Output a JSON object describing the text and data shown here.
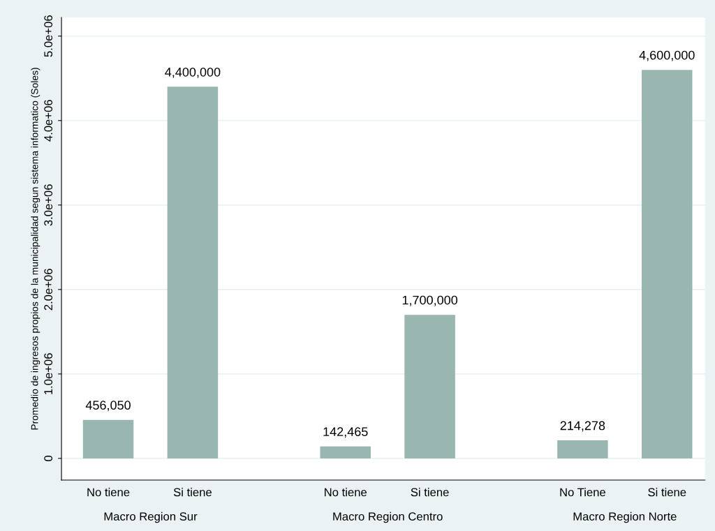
{
  "chart_data": {
    "type": "bar",
    "ylabel": "Promedio de ingresos propios de la municipalidad segun sistema informatico (Soles)",
    "categories": [
      "No tiene",
      "Si tiene",
      "No tiene",
      "Si tiene",
      "No Tiene",
      "Si tiene"
    ],
    "values": [
      456050,
      4400000,
      142465,
      1700000,
      214278,
      4600000
    ],
    "value_labels": [
      "456,050",
      "4,400,000",
      "142,465",
      "1,700,000",
      "214,278",
      "4,600,000"
    ],
    "color": "#99b7b0",
    "ylim": [
      -256000,
      5220000
    ],
    "yticks": [
      {
        "value": 0,
        "label": "0"
      },
      {
        "value": 1000000,
        "label": "1.0e+06"
      },
      {
        "value": 2000000,
        "label": "2.0e+06"
      },
      {
        "value": 3000000,
        "label": "3.0e+06"
      },
      {
        "value": 4000000,
        "label": "4.0e+06"
      },
      {
        "value": 5000000,
        "label": "5.0e+06"
      }
    ],
    "grid": "y",
    "annotations": [
      "Macro Region Sur",
      "Macro Region Centro",
      "Macro Region Norte"
    ]
  }
}
